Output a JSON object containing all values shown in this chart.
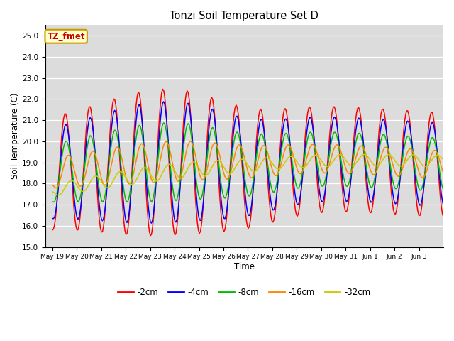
{
  "title": "Tonzi Soil Temperature Set D",
  "xlabel": "Time",
  "ylabel": "Soil Temperature (C)",
  "ylim": [
    15.0,
    25.5
  ],
  "yticks": [
    15.0,
    16.0,
    17.0,
    18.0,
    19.0,
    20.0,
    21.0,
    22.0,
    23.0,
    24.0,
    25.0
  ],
  "bg_color": "#e8e8e8",
  "plot_bg": "#dcdcdc",
  "annotation_text": "TZ_fmet",
  "annotation_bg": "#ffffcc",
  "annotation_border": "#cc9900",
  "legend_entries": [
    "-2cm",
    "-4cm",
    "-8cm",
    "-16cm",
    "-32cm"
  ],
  "line_colors": [
    "#ff0000",
    "#0000ff",
    "#00bb00",
    "#ff8800",
    "#cccc00"
  ],
  "x_tick_labels": [
    "May 19",
    "May 20",
    "May 21",
    "May 22",
    "May 23",
    "May 24",
    "May 25",
    "May 26",
    "May 27",
    "May 28",
    "May 29",
    "May 30",
    "May 31",
    "Jun 1",
    "Jun 2",
    "Jun 3"
  ]
}
